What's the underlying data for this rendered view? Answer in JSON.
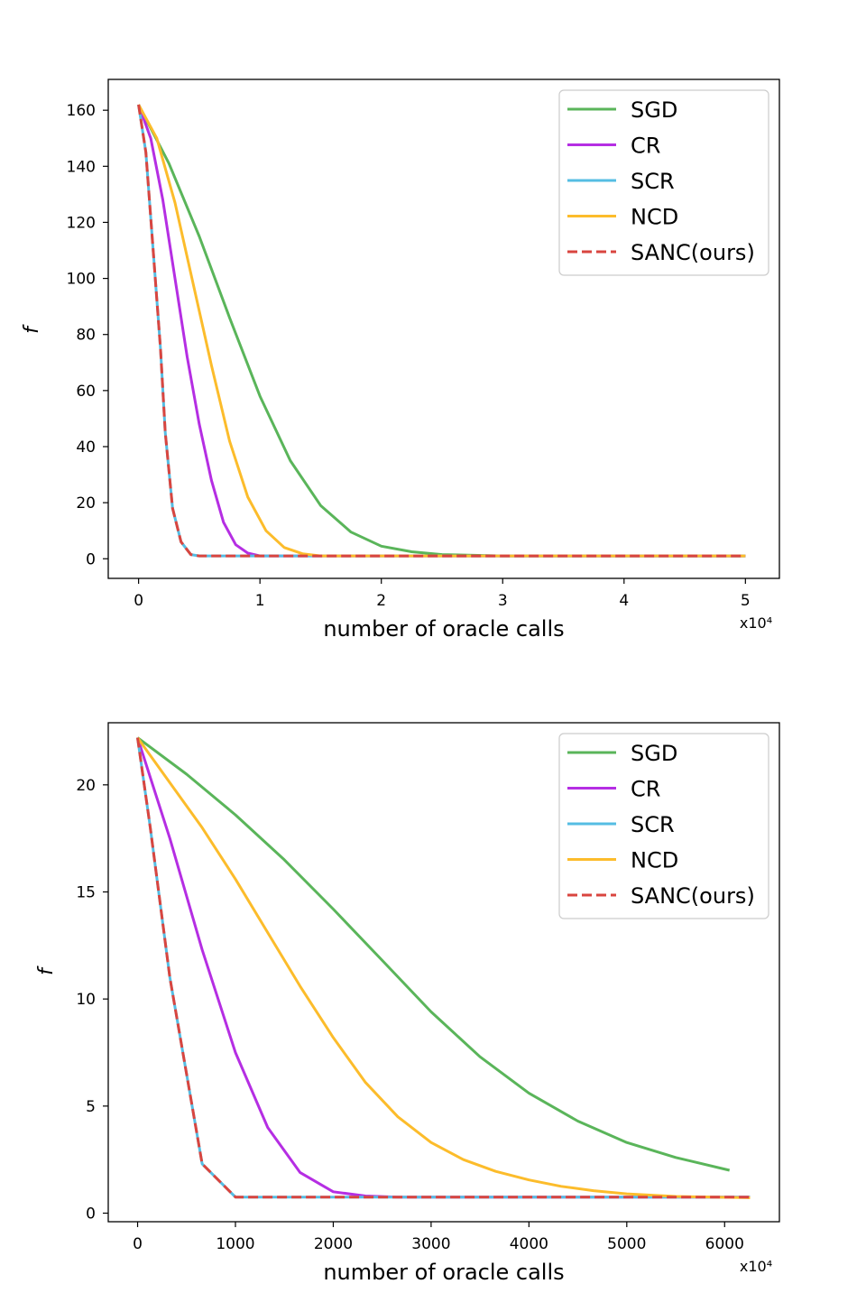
{
  "chart_data": [
    {
      "type": "line",
      "title": "",
      "xlabel": "number of oracle calls",
      "ylabel": "f",
      "x_multiplier": "x10⁴",
      "xlim": [
        -0.25,
        5.28
      ],
      "ylim": [
        -7,
        171
      ],
      "xticks": [
        0,
        1,
        2,
        3,
        4,
        5
      ],
      "xtick_labels": [
        "0",
        "1",
        "2",
        "3",
        "4",
        "5"
      ],
      "yticks": [
        0,
        20,
        40,
        60,
        80,
        100,
        120,
        140,
        160
      ],
      "ytick_labels": [
        "0",
        "20",
        "40",
        "60",
        "80",
        "100",
        "120",
        "140",
        "160"
      ],
      "legend_position": "upper right",
      "series": [
        {
          "name": "SGD",
          "color": "#5ab55a",
          "dash": "solid",
          "x": [
            0,
            0.25,
            0.5,
            0.75,
            1.0,
            1.25,
            1.5,
            1.75,
            2.0,
            2.25,
            2.5,
            3.0,
            4.0,
            5.0
          ],
          "y": [
            162,
            141,
            115,
            86,
            58,
            35,
            19,
            9.5,
            4.5,
            2.5,
            1.5,
            1,
            1,
            1
          ]
        },
        {
          "name": "CR",
          "color": "#b52ee3",
          "dash": "solid",
          "x": [
            0,
            0.1,
            0.2,
            0.3,
            0.4,
            0.5,
            0.6,
            0.7,
            0.8,
            0.9,
            1.0,
            1.2,
            5.0
          ],
          "y": [
            162,
            150,
            128,
            100,
            72,
            48,
            28,
            13,
            5,
            2,
            1,
            1,
            1
          ]
        },
        {
          "name": "SCR",
          "color": "#55bde3",
          "dash": "solid",
          "x": [
            0,
            0.06,
            0.12,
            0.18,
            0.22,
            0.28,
            0.35,
            0.43,
            0.5,
            5.0
          ],
          "y": [
            162,
            145,
            110,
            75,
            45,
            18,
            6,
            1.5,
            1,
            1
          ]
        },
        {
          "name": "NCD",
          "color": "#fcbc2b",
          "dash": "solid",
          "x": [
            0,
            0.15,
            0.3,
            0.45,
            0.6,
            0.75,
            0.9,
            1.05,
            1.2,
            1.35,
            1.5,
            2.0,
            5.0
          ],
          "y": [
            162,
            150,
            127,
            98,
            69,
            42,
            22,
            10,
            4,
            1.8,
            1,
            1,
            1
          ]
        },
        {
          "name": "SANC(ours)",
          "color": "#d9453f",
          "dash": "dashed",
          "x": [
            0,
            0.06,
            0.12,
            0.18,
            0.22,
            0.28,
            0.35,
            0.43,
            0.5,
            5.0
          ],
          "y": [
            162,
            145,
            110,
            75,
            45,
            18,
            6,
            1.5,
            1,
            1
          ]
        }
      ]
    },
    {
      "type": "line",
      "title": "",
      "xlabel": "number of oracle calls",
      "ylabel": "f",
      "x_multiplier": "x10⁴",
      "xlim": [
        -300,
        6560
      ],
      "ylim": [
        -0.4,
        22.9
      ],
      "xticks": [
        0,
        1000,
        2000,
        3000,
        4000,
        5000,
        6000
      ],
      "xtick_labels": [
        "0",
        "1000",
        "2000",
        "3000",
        "4000",
        "5000",
        "6000"
      ],
      "yticks": [
        0,
        5,
        10,
        15,
        20
      ],
      "ytick_labels": [
        "0",
        "5",
        "10",
        "15",
        "20"
      ],
      "legend_position": "upper right",
      "series": [
        {
          "name": "SGD",
          "color": "#5ab55a",
          "dash": "solid",
          "x": [
            0,
            500,
            1000,
            1500,
            2000,
            2500,
            3000,
            3500,
            4000,
            4500,
            5000,
            5500,
            6050
          ],
          "y": [
            22.2,
            20.5,
            18.6,
            16.5,
            14.2,
            11.8,
            9.4,
            7.3,
            5.6,
            4.3,
            3.3,
            2.6,
            2.0
          ]
        },
        {
          "name": "CR",
          "color": "#b52ee3",
          "dash": "solid",
          "x": [
            0,
            330,
            660,
            1000,
            1330,
            1660,
            2000,
            2330,
            2660,
            6260
          ],
          "y": [
            22.2,
            17.5,
            12.3,
            7.5,
            4.0,
            1.9,
            1.0,
            0.8,
            0.75,
            0.75
          ]
        },
        {
          "name": "SCR",
          "color": "#55bde3",
          "dash": "solid",
          "x": [
            0,
            130,
            330,
            660,
            1000,
            6260
          ],
          "y": [
            22.2,
            18.0,
            11.0,
            2.3,
            0.75,
            0.75
          ]
        },
        {
          "name": "NCD",
          "color": "#fcbc2b",
          "dash": "solid",
          "x": [
            0,
            660,
            1000,
            1330,
            1660,
            2000,
            2330,
            2660,
            3000,
            3330,
            3660,
            4000,
            4330,
            4660,
            5000,
            5500,
            6260
          ],
          "y": [
            22.2,
            18.0,
            15.6,
            13.1,
            10.6,
            8.2,
            6.1,
            4.5,
            3.3,
            2.5,
            1.95,
            1.55,
            1.25,
            1.05,
            0.9,
            0.78,
            0.72
          ]
        },
        {
          "name": "SANC(ours)",
          "color": "#d9453f",
          "dash": "dashed",
          "x": [
            0,
            130,
            330,
            660,
            1000,
            6260
          ],
          "y": [
            22.2,
            18.0,
            11.0,
            2.3,
            0.75,
            0.75
          ]
        }
      ]
    }
  ]
}
